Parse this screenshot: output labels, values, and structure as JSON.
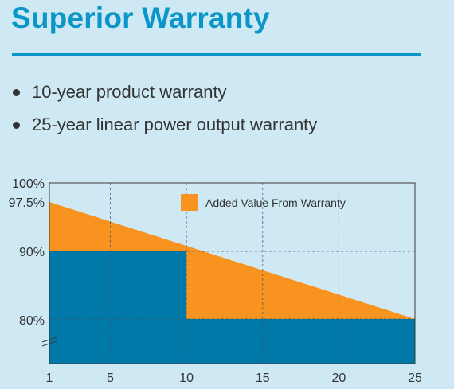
{
  "title": "Superior Warranty",
  "bullets": [
    "10-year product warranty",
    "25-year linear power output warranty"
  ],
  "colors": {
    "title": "#0a96c8",
    "background": "#cfe9f4",
    "orange": "#f7931e",
    "blue": "#0078a8"
  },
  "chart_data": {
    "type": "area",
    "title": "",
    "xlabel": "",
    "ylabel": "",
    "x_ticks": [
      1,
      5,
      10,
      15,
      20,
      25
    ],
    "y_ticks": [
      "100%",
      "97.5%",
      "90%",
      "80%"
    ],
    "y_tick_values": [
      100,
      97.5,
      90,
      80
    ],
    "xlim": [
      1,
      25
    ],
    "ylim": [
      75,
      100
    ],
    "grid": true,
    "legend": "top-right",
    "series": [
      {
        "name": "Added Value From Warranty",
        "x": [
          1,
          25
        ],
        "y": [
          97.5,
          80
        ],
        "color": "#f7931e"
      },
      {
        "name": "",
        "x": [
          1,
          10,
          10,
          25
        ],
        "y": [
          90,
          90,
          80,
          80
        ],
        "color": "#0078a8"
      }
    ]
  }
}
